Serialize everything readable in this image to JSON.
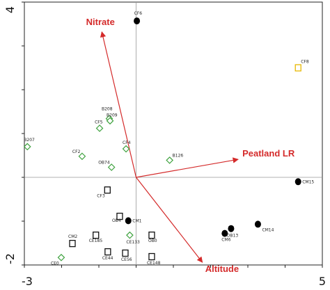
{
  "chart_data": {
    "type": "scatter",
    "xlim": [
      -3,
      5
    ],
    "ylim": [
      -2,
      4
    ],
    "x_ticks": [
      -3,
      5
    ],
    "y_ticks": [
      -2,
      4
    ],
    "x_tick_labels": [
      "-3",
      "5"
    ],
    "y_tick_labels": [
      "-2",
      "4"
    ],
    "zero_lines": true,
    "points": [
      {
        "label": "CF6",
        "x": 0.02,
        "y": 3.57,
        "marker": "filled-circle"
      },
      {
        "label": "CM15",
        "x": 4.35,
        "y": -0.1,
        "marker": "filled-circle"
      },
      {
        "label": "OB13",
        "x": 2.55,
        "y": -1.17,
        "marker": "filled-circle"
      },
      {
        "label": "CM6",
        "x": 2.38,
        "y": -1.28,
        "marker": "filled-circle"
      },
      {
        "label": "CM14",
        "x": 3.27,
        "y": -1.07,
        "marker": "filled-circle"
      },
      {
        "label": "CM1",
        "x": -0.21,
        "y": -0.99,
        "marker": "filled-circle"
      },
      {
        "label": "CF8",
        "x": 4.35,
        "y": 2.5,
        "marker": "open-square-yellow"
      },
      {
        "label": "CF3",
        "x": -0.77,
        "y": -0.29,
        "marker": "open-square"
      },
      {
        "label": "OB4",
        "x": -0.44,
        "y": -0.89,
        "marker": "open-square"
      },
      {
        "label": "CM2",
        "x": -1.71,
        "y": -1.51,
        "marker": "open-square"
      },
      {
        "label": "CE185",
        "x": -1.08,
        "y": -1.32,
        "marker": "open-square"
      },
      {
        "label": "OB0",
        "x": 0.42,
        "y": -1.32,
        "marker": "open-square"
      },
      {
        "label": "CE44",
        "x": -0.76,
        "y": -1.7,
        "marker": "open-square"
      },
      {
        "label": "CE56",
        "x": -0.29,
        "y": -1.73,
        "marker": "open-square"
      },
      {
        "label": "CE148",
        "x": 0.42,
        "y": -1.81,
        "marker": "open-square"
      },
      {
        "label": "B208",
        "x": -0.72,
        "y": 1.34,
        "marker": "open-diamond"
      },
      {
        "label": "B209",
        "x": -0.7,
        "y": 1.29,
        "marker": "open-diamond"
      },
      {
        "label": "CF5",
        "x": -0.98,
        "y": 1.12,
        "marker": "open-diamond"
      },
      {
        "label": "B207",
        "x": -2.92,
        "y": 0.7,
        "marker": "open-diamond"
      },
      {
        "label": "CF4",
        "x": -0.27,
        "y": 0.65,
        "marker": "open-diamond"
      },
      {
        "label": "CF2",
        "x": -1.45,
        "y": 0.48,
        "marker": "open-diamond"
      },
      {
        "label": "OB74",
        "x": -0.66,
        "y": 0.23,
        "marker": "open-diamond"
      },
      {
        "label": "B126",
        "x": 0.9,
        "y": 0.39,
        "marker": "open-diamond"
      },
      {
        "label": "CE133",
        "x": -0.17,
        "y": -1.32,
        "marker": "open-diamond"
      },
      {
        "label": "CE0",
        "x": -2.01,
        "y": -1.83,
        "marker": "open-diamond"
      }
    ],
    "vectors": [
      {
        "name": "Nitrate",
        "x": -0.92,
        "y": 3.32
      },
      {
        "name": "Peatland LR",
        "x": 2.74,
        "y": 0.41
      },
      {
        "name": "Altitude",
        "x": 1.78,
        "y": -1.94
      }
    ],
    "colors": {
      "axis": "#222222",
      "zero_line": "#999999",
      "vector": "#d42a2a",
      "diamond": "#3fa23f",
      "square": "#111111",
      "circle": "#000000",
      "yellow_square": "#e8b800"
    }
  }
}
